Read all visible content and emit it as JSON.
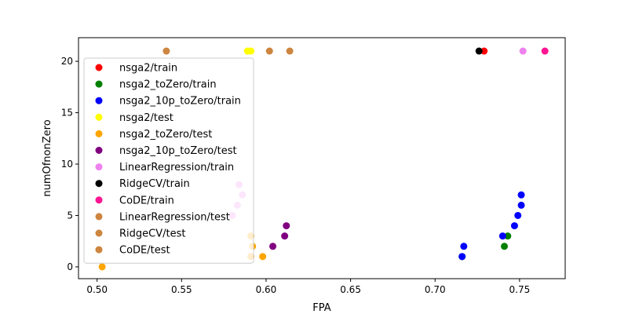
{
  "chart_data": {
    "type": "scatter",
    "title": "",
    "xlabel": "FPA",
    "ylabel": "numOfnonZero",
    "xlim": [
      0.489,
      0.777
    ],
    "ylim": [
      -1.15,
      22.3
    ],
    "xticks": [
      0.5,
      0.55,
      0.6,
      0.65,
      0.7,
      0.75
    ],
    "xtick_labels": [
      "0.50",
      "0.55",
      "0.60",
      "0.65",
      "0.70",
      "0.75"
    ],
    "yticks": [
      0,
      5,
      10,
      15,
      20
    ],
    "ytick_labels": [
      "0",
      "5",
      "10",
      "15",
      "20"
    ],
    "grid": false,
    "legend_position": "left",
    "series": [
      {
        "name": "nsga2/train",
        "color": "#ff0000",
        "points": [
          [
            0.729,
            21
          ]
        ]
      },
      {
        "name": "nsga2_toZero/train",
        "color": "#008000",
        "points": [
          [
            0.716,
            1
          ],
          [
            0.741,
            2
          ],
          [
            0.743,
            3
          ]
        ]
      },
      {
        "name": "nsga2_10p_toZero/train",
        "color": "#0000ff",
        "points": [
          [
            0.716,
            1
          ],
          [
            0.717,
            2
          ],
          [
            0.74,
            3
          ],
          [
            0.747,
            4
          ],
          [
            0.749,
            5
          ],
          [
            0.751,
            6
          ],
          [
            0.751,
            7
          ]
        ]
      },
      {
        "name": "nsga2/test",
        "color": "#ffff00",
        "points": [
          [
            0.589,
            21
          ],
          [
            0.591,
            21
          ]
        ]
      },
      {
        "name": "nsga2_toZero/test",
        "color": "#ffa500",
        "points": [
          [
            0.503,
            0
          ],
          [
            0.591,
            1
          ],
          [
            0.592,
            2
          ],
          [
            0.591,
            3
          ],
          [
            0.598,
            1
          ]
        ]
      },
      {
        "name": "nsga2_10p_toZero/test",
        "color": "#800080",
        "points": [
          [
            0.604,
            2
          ],
          [
            0.611,
            3
          ],
          [
            0.612,
            4
          ]
        ]
      },
      {
        "name": "LinearRegression/train",
        "color": "#ee82ee",
        "points": [
          [
            0.752,
            21
          ],
          [
            0.58,
            5
          ],
          [
            0.583,
            6
          ],
          [
            0.586,
            7
          ],
          [
            0.584,
            8
          ]
        ]
      },
      {
        "name": "RidgeCV/train",
        "color": "#000000",
        "points": [
          [
            0.726,
            21
          ]
        ]
      },
      {
        "name": "CoDE/train",
        "color": "#ff1493",
        "points": [
          [
            0.765,
            21
          ]
        ]
      },
      {
        "name": "LinearRegression/test",
        "color": "#cd853f",
        "points": [
          [
            0.541,
            21
          ],
          [
            0.602,
            21
          ],
          [
            0.614,
            21
          ]
        ]
      },
      {
        "name": "RidgeCV/test",
        "color": "#cd853f",
        "points": []
      },
      {
        "name": "CoDE/test",
        "color": "#cd853f",
        "points": []
      }
    ]
  }
}
